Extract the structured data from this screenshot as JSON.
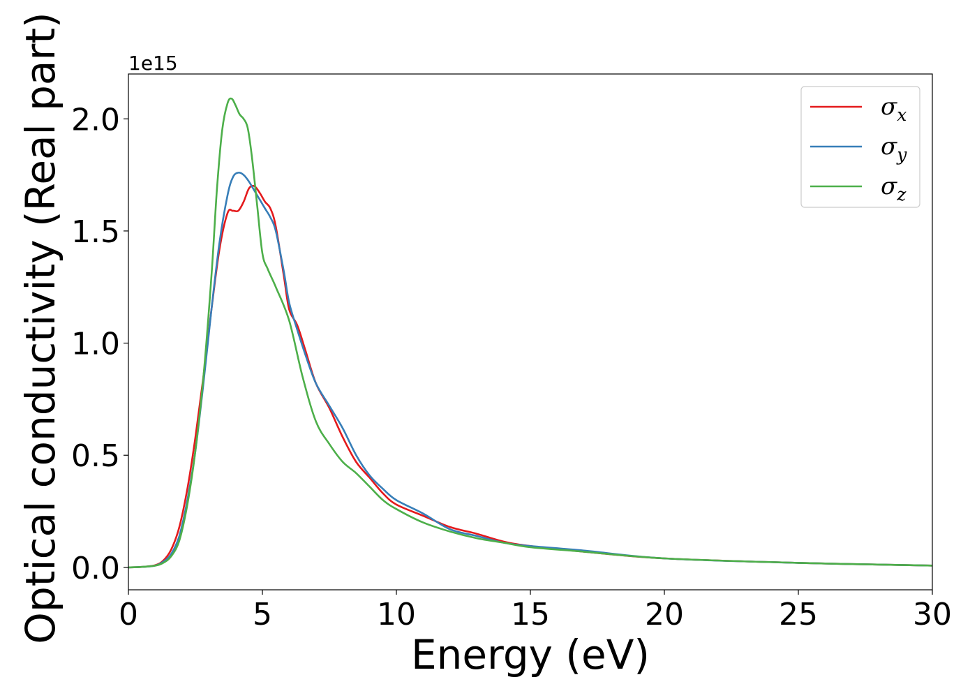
{
  "chart_data": {
    "type": "line",
    "xlabel": "Energy (eV)",
    "ylabel": "Optical conductivity (Real part)",
    "y_offset_label": "1e15",
    "xlim": [
      0,
      30
    ],
    "ylim": [
      -0.1,
      2.2
    ],
    "xticks": [
      0,
      5,
      10,
      15,
      20,
      25,
      30
    ],
    "xtick_labels": [
      "0",
      "5",
      "10",
      "15",
      "20",
      "25",
      "30"
    ],
    "yticks": [
      0.0,
      0.5,
      1.0,
      1.5,
      2.0
    ],
    "ytick_labels": [
      "0.0",
      "0.5",
      "1.0",
      "1.5",
      "2.0"
    ],
    "grid": false,
    "legend_position": "top-right",
    "series": [
      {
        "name": "σx",
        "symbol": "σ",
        "subscript": "x",
        "color": "#e41a1c",
        "x": [
          0,
          0.5,
          1.0,
          1.3,
          1.6,
          1.9,
          2.2,
          2.5,
          2.8,
          3.1,
          3.4,
          3.7,
          3.9,
          4.1,
          4.3,
          4.5,
          4.7,
          4.9,
          5.1,
          5.3,
          5.5,
          5.8,
          6.0,
          6.3,
          6.6,
          7.0,
          7.5,
          8.0,
          8.5,
          9.0,
          9.5,
          10.0,
          11.0,
          12.0,
          13.0,
          14.0,
          15.0,
          17.0,
          20.0,
          25.0,
          30.0
        ],
        "y": [
          0.0,
          0.002,
          0.01,
          0.03,
          0.08,
          0.18,
          0.35,
          0.58,
          0.85,
          1.15,
          1.42,
          1.58,
          1.59,
          1.59,
          1.63,
          1.69,
          1.7,
          1.67,
          1.63,
          1.6,
          1.52,
          1.3,
          1.15,
          1.08,
          0.97,
          0.82,
          0.71,
          0.58,
          0.47,
          0.4,
          0.33,
          0.28,
          0.23,
          0.18,
          0.15,
          0.115,
          0.095,
          0.07,
          0.04,
          0.02,
          0.008
        ]
      },
      {
        "name": "σy",
        "symbol": "σ",
        "subscript": "y",
        "color": "#377eb8",
        "x": [
          0,
          0.5,
          1.0,
          1.3,
          1.6,
          1.9,
          2.2,
          2.5,
          2.8,
          3.1,
          3.4,
          3.7,
          3.9,
          4.1,
          4.3,
          4.5,
          4.7,
          4.9,
          5.1,
          5.3,
          5.5,
          5.8,
          6.0,
          6.3,
          6.6,
          7.0,
          7.5,
          8.0,
          8.5,
          9.0,
          9.5,
          10.0,
          11.0,
          12.0,
          13.0,
          14.0,
          15.0,
          17.0,
          20.0,
          25.0,
          30.0
        ],
        "y": [
          0.0,
          0.002,
          0.008,
          0.025,
          0.06,
          0.14,
          0.3,
          0.52,
          0.82,
          1.15,
          1.45,
          1.66,
          1.74,
          1.76,
          1.75,
          1.72,
          1.68,
          1.64,
          1.6,
          1.56,
          1.5,
          1.32,
          1.18,
          1.06,
          0.95,
          0.82,
          0.72,
          0.62,
          0.5,
          0.41,
          0.35,
          0.3,
          0.24,
          0.17,
          0.14,
          0.11,
          0.095,
          0.075,
          0.04,
          0.02,
          0.008
        ]
      },
      {
        "name": "σz",
        "symbol": "σ",
        "subscript": "z",
        "color": "#4daf4a",
        "x": [
          0,
          0.5,
          1.0,
          1.3,
          1.6,
          1.9,
          2.2,
          2.5,
          2.8,
          3.1,
          3.3,
          3.5,
          3.7,
          3.85,
          4.0,
          4.15,
          4.3,
          4.45,
          4.6,
          4.8,
          5.0,
          5.2,
          5.5,
          6.0,
          6.5,
          7.0,
          7.5,
          8.0,
          8.5,
          9.0,
          9.5,
          10.0,
          11.0,
          12.0,
          13.0,
          14.0,
          15.0,
          17.0,
          20.0,
          25.0,
          30.0
        ],
        "y": [
          0.0,
          0.002,
          0.008,
          0.02,
          0.05,
          0.12,
          0.28,
          0.52,
          0.85,
          1.3,
          1.68,
          1.95,
          2.07,
          2.09,
          2.06,
          2.02,
          2.0,
          1.96,
          1.84,
          1.62,
          1.4,
          1.33,
          1.25,
          1.1,
          0.85,
          0.65,
          0.55,
          0.47,
          0.42,
          0.36,
          0.3,
          0.26,
          0.2,
          0.16,
          0.13,
          0.11,
          0.09,
          0.07,
          0.04,
          0.02,
          0.008
        ]
      }
    ]
  }
}
